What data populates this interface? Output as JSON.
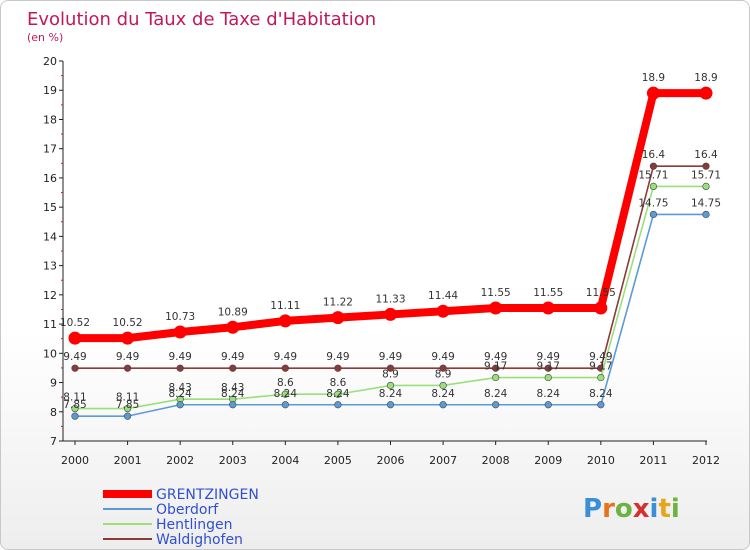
{
  "title": "Evolution du Taux de Taxe d'Habitation",
  "subtitle": "(en %)",
  "logo": {
    "letters": [
      {
        "ch": "P",
        "color": "#3a8fd6"
      },
      {
        "ch": "r",
        "color": "#e8731c"
      },
      {
        "ch": "o",
        "color": "#6db33f"
      },
      {
        "ch": "x",
        "color": "#d62f2f"
      },
      {
        "ch": "i",
        "color": "#3a8fd6"
      },
      {
        "ch": "t",
        "color": "#e8a51c"
      },
      {
        "ch": "i",
        "color": "#6db33f"
      }
    ]
  },
  "chart_data": {
    "type": "line",
    "title": "Evolution du Taux de Taxe d'Habitation",
    "subtitle": "(en %)",
    "x": [
      "2000",
      "2001",
      "2002",
      "2003",
      "2004",
      "2005",
      "2006",
      "2007",
      "2008",
      "2009",
      "2010",
      "2011",
      "2012"
    ],
    "ylim": [
      7,
      20
    ],
    "yticks": [
      7,
      8,
      9,
      10,
      11,
      12,
      13,
      14,
      15,
      16,
      17,
      18,
      19,
      20
    ],
    "grid": false,
    "legend_position": "bottom-left",
    "series": [
      {
        "name": "GRENTZINGEN",
        "color": "#ff0000",
        "values": [
          10.52,
          10.52,
          10.73,
          10.89,
          11.11,
          11.22,
          11.33,
          11.44,
          11.55,
          11.55,
          11.55,
          18.9,
          18.9
        ],
        "labels": [
          "10.52",
          "10.52",
          "10.73",
          "10.89",
          "11.11",
          "11.22",
          "11.33",
          "11.44",
          "11.55",
          "11.55",
          "11.55",
          "18.9",
          "18.9"
        ]
      },
      {
        "name": "Oberdorf",
        "color": "#5b9bd5",
        "values": [
          7.85,
          7.85,
          8.24,
          8.24,
          8.24,
          8.24,
          8.24,
          8.24,
          8.24,
          8.24,
          8.24,
          14.75,
          14.75
        ],
        "labels": [
          "7.85",
          "7.85",
          "8.24",
          "8.24",
          "8.24",
          "8.24",
          "8.24",
          "8.24",
          "8.24",
          "8.24",
          "8.24",
          "14.75",
          "14.75"
        ]
      },
      {
        "name": "Hentlingen",
        "color": "#99e07a",
        "values": [
          8.11,
          8.11,
          8.43,
          8.43,
          8.6,
          8.6,
          8.9,
          8.9,
          9.17,
          9.17,
          9.17,
          15.71,
          15.71
        ],
        "labels": [
          "8.11",
          "8.11",
          "8.43",
          "8.43",
          "8.6",
          "8.6",
          "8.9",
          "8.9",
          "9.17",
          "9.17",
          "9.17",
          "15.71",
          "15.71"
        ]
      },
      {
        "name": "Waldighofen",
        "color": "#8b3a3a",
        "values": [
          9.49,
          9.49,
          9.49,
          9.49,
          9.49,
          9.49,
          9.49,
          9.49,
          9.49,
          9.49,
          9.49,
          16.4,
          16.4
        ],
        "labels": [
          "9.49",
          "9.49",
          "9.49",
          "9.49",
          "9.49",
          "9.49",
          "9.49",
          "9.49",
          "9.49",
          "9.49",
          "9.49",
          "16.4",
          "16.4"
        ]
      }
    ]
  }
}
